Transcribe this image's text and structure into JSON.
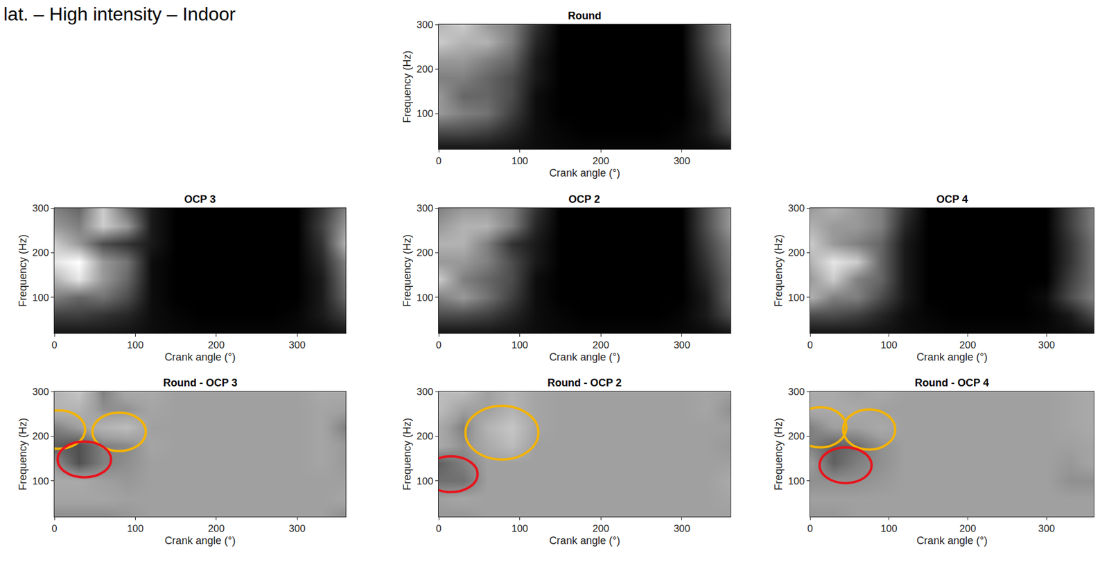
{
  "figure_title": "lat. – High intensity – Indoor",
  "chart_data": [
    {
      "type": "heatmap",
      "title": "Round",
      "x_label": "Crank angle (°)",
      "y_label": "Frequency (Hz)",
      "xlim": [
        0,
        360
      ],
      "ylim": [
        20,
        300
      ],
      "xticks": [
        0,
        100,
        200,
        300
      ],
      "yticks": [
        100,
        200,
        300
      ],
      "colors": [
        "#000000",
        "#ffffff"
      ],
      "zlim": [
        0,
        1
      ],
      "x": [
        0,
        30,
        60,
        90,
        120,
        150,
        180,
        210,
        240,
        270,
        300,
        330,
        360
      ],
      "y": [
        25,
        60,
        100,
        140,
        180,
        220,
        260,
        300
      ],
      "z": [
        [
          0.1,
          0.1,
          0.1,
          0.08,
          0.05,
          0.03,
          0.02,
          0.02,
          0.02,
          0.02,
          0.03,
          0.05,
          0.1
        ],
        [
          0.3,
          0.3,
          0.25,
          0.15,
          0.05,
          0.02,
          0,
          0,
          0,
          0,
          0.02,
          0.1,
          0.3
        ],
        [
          0.6,
          0.5,
          0.45,
          0.25,
          0.05,
          0,
          0,
          0,
          0,
          0,
          0,
          0.1,
          0.4
        ],
        [
          0.6,
          0.4,
          0.4,
          0.3,
          0.05,
          0,
          0,
          0,
          0,
          0,
          0,
          0.15,
          0.4
        ],
        [
          0.5,
          0.5,
          0.4,
          0.3,
          0.1,
          0,
          0,
          0,
          0,
          0,
          0,
          0.2,
          0.45
        ],
        [
          0.6,
          0.6,
          0.5,
          0.4,
          0.1,
          0,
          0,
          0,
          0,
          0,
          0,
          0.25,
          0.5
        ],
        [
          0.8,
          0.7,
          0.7,
          0.5,
          0.15,
          0,
          0,
          0,
          0,
          0,
          0,
          0.3,
          0.6
        ],
        [
          0.7,
          0.8,
          0.6,
          0.5,
          0.2,
          0,
          0,
          0,
          0,
          0,
          0,
          0.3,
          0.6
        ]
      ],
      "highlights": []
    },
    {
      "type": "heatmap",
      "title": "OCP 3",
      "x_label": "Crank angle (°)",
      "y_label": "Frequency (Hz)",
      "xlim": [
        0,
        360
      ],
      "ylim": [
        20,
        300
      ],
      "xticks": [
        0,
        100,
        200,
        300
      ],
      "yticks": [
        100,
        200,
        300
      ],
      "colors": [
        "#000000",
        "#ffffff"
      ],
      "zlim": [
        0,
        1
      ],
      "x": [
        0,
        30,
        60,
        90,
        120,
        150,
        180,
        210,
        240,
        270,
        300,
        330,
        360
      ],
      "y": [
        25,
        60,
        100,
        140,
        180,
        220,
        260,
        300
      ],
      "z": [
        [
          0.1,
          0.1,
          0.1,
          0.08,
          0.05,
          0.03,
          0.02,
          0.02,
          0.02,
          0.02,
          0.03,
          0.05,
          0.1
        ],
        [
          0.25,
          0.25,
          0.2,
          0.15,
          0.05,
          0.02,
          0,
          0,
          0,
          0,
          0.02,
          0.1,
          0.25
        ],
        [
          0.5,
          0.4,
          0.45,
          0.3,
          0.05,
          0,
          0,
          0,
          0,
          0,
          0,
          0.1,
          0.4
        ],
        [
          0.7,
          0.9,
          0.6,
          0.4,
          0.05,
          0,
          0,
          0,
          0,
          0,
          0,
          0.1,
          0.45
        ],
        [
          0.9,
          1,
          0.6,
          0.45,
          0.05,
          0,
          0,
          0,
          0,
          0,
          0,
          0.15,
          0.5
        ],
        [
          0.8,
          0.6,
          0.3,
          0.2,
          0.1,
          0,
          0,
          0,
          0,
          0,
          0,
          0.2,
          0.7
        ],
        [
          0.6,
          0.5,
          0.8,
          0.6,
          0.1,
          0,
          0,
          0,
          0,
          0,
          0,
          0.25,
          0.6
        ],
        [
          0.5,
          0.4,
          0.8,
          0.4,
          0.1,
          0,
          0,
          0,
          0,
          0,
          0,
          0.2,
          0.5
        ]
      ],
      "highlights": []
    },
    {
      "type": "heatmap",
      "title": "OCP 2",
      "x_label": "Crank angle (°)",
      "y_label": "Frequency (Hz)",
      "xlim": [
        0,
        360
      ],
      "ylim": [
        20,
        300
      ],
      "xticks": [
        0,
        100,
        200,
        300
      ],
      "yticks": [
        100,
        200,
        300
      ],
      "colors": [
        "#000000",
        "#ffffff"
      ],
      "zlim": [
        0,
        1
      ],
      "x": [
        0,
        30,
        60,
        90,
        120,
        150,
        180,
        210,
        240,
        270,
        300,
        330,
        360
      ],
      "y": [
        25,
        60,
        100,
        140,
        180,
        220,
        260,
        300
      ],
      "z": [
        [
          0.1,
          0.1,
          0.1,
          0.08,
          0.05,
          0.03,
          0.02,
          0.02,
          0.02,
          0.02,
          0.03,
          0.05,
          0.1
        ],
        [
          0.3,
          0.3,
          0.25,
          0.15,
          0.05,
          0.02,
          0,
          0,
          0,
          0,
          0.02,
          0.1,
          0.3
        ],
        [
          0.5,
          0.6,
          0.45,
          0.25,
          0.05,
          0,
          0,
          0,
          0,
          0,
          0,
          0.1,
          0.4
        ],
        [
          0.8,
          0.5,
          0.4,
          0.3,
          0.05,
          0,
          0,
          0,
          0,
          0,
          0,
          0.15,
          0.4
        ],
        [
          0.6,
          0.6,
          0.5,
          0.3,
          0.1,
          0,
          0,
          0,
          0,
          0,
          0,
          0.2,
          0.45
        ],
        [
          0.7,
          0.7,
          0.5,
          0.2,
          0.1,
          0,
          0,
          0,
          0,
          0,
          0,
          0.25,
          0.5
        ],
        [
          0.6,
          0.7,
          0.7,
          0.5,
          0.15,
          0,
          0,
          0,
          0,
          0,
          0,
          0.3,
          0.6
        ],
        [
          0.5,
          0.6,
          0.6,
          0.5,
          0.2,
          0,
          0,
          0,
          0,
          0,
          0,
          0.3,
          0.6
        ]
      ],
      "highlights": []
    },
    {
      "type": "heatmap",
      "title": "OCP 4",
      "x_label": "Crank angle (°)",
      "y_label": "Frequency (Hz)",
      "xlim": [
        0,
        360
      ],
      "ylim": [
        20,
        300
      ],
      "xticks": [
        0,
        100,
        200,
        300
      ],
      "yticks": [
        100,
        200,
        300
      ],
      "colors": [
        "#000000",
        "#ffffff"
      ],
      "zlim": [
        0,
        1
      ],
      "x": [
        0,
        30,
        60,
        90,
        120,
        150,
        180,
        210,
        240,
        270,
        300,
        330,
        360
      ],
      "y": [
        25,
        60,
        100,
        140,
        180,
        220,
        260,
        300
      ],
      "z": [
        [
          0.1,
          0.1,
          0.1,
          0.08,
          0.05,
          0.03,
          0.02,
          0.02,
          0.02,
          0.02,
          0.03,
          0.05,
          0.1
        ],
        [
          0.3,
          0.3,
          0.25,
          0.15,
          0.05,
          0.02,
          0,
          0,
          0,
          0,
          0.02,
          0.1,
          0.3
        ],
        [
          0.7,
          0.5,
          0.5,
          0.3,
          0.1,
          0,
          0,
          0,
          0,
          0,
          0.05,
          0.3,
          0.5
        ],
        [
          0.6,
          0.8,
          0.5,
          0.4,
          0.1,
          0,
          0,
          0,
          0,
          0,
          0,
          0.25,
          0.45
        ],
        [
          0.7,
          0.9,
          0.8,
          0.4,
          0.1,
          0,
          0,
          0,
          0,
          0,
          0,
          0.2,
          0.45
        ],
        [
          0.8,
          0.6,
          0.5,
          0.4,
          0.1,
          0,
          0,
          0,
          0,
          0,
          0,
          0.2,
          0.45
        ],
        [
          0.7,
          0.6,
          0.6,
          0.5,
          0.15,
          0,
          0,
          0,
          0,
          0,
          0,
          0.25,
          0.5
        ],
        [
          0.6,
          0.7,
          0.6,
          0.5,
          0.2,
          0,
          0,
          0,
          0,
          0,
          0,
          0.25,
          0.5
        ]
      ],
      "highlights": []
    },
    {
      "type": "heatmap",
      "title": "Round - OCP 3",
      "x_label": "Crank angle (°)",
      "y_label": "Frequency (Hz)",
      "xlim": [
        0,
        360
      ],
      "ylim": [
        20,
        300
      ],
      "xticks": [
        0,
        100,
        200,
        300
      ],
      "yticks": [
        100,
        200,
        300
      ],
      "colors": [
        "#000000",
        "#a0a0a0",
        "#ffffff"
      ],
      "zlim": [
        -1,
        1
      ],
      "x": [
        0,
        30,
        60,
        90,
        120,
        150,
        180,
        210,
        240,
        270,
        300,
        330,
        360
      ],
      "y": [
        25,
        60,
        100,
        140,
        180,
        220,
        260,
        300
      ],
      "z": [
        [
          -0.1,
          -0.1,
          -0.1,
          -0.05,
          0,
          0,
          0,
          0,
          0,
          0,
          0,
          0,
          -0.1
        ],
        [
          0.05,
          0.05,
          0.05,
          0,
          0,
          0,
          0,
          0,
          0,
          0,
          0,
          0,
          0.05
        ],
        [
          0.1,
          0.1,
          0,
          -0.05,
          0,
          0,
          0,
          0,
          0,
          0,
          0,
          0,
          0
        ],
        [
          -0.1,
          -0.5,
          -0.2,
          -0.1,
          0,
          0,
          0,
          0,
          0,
          0,
          0,
          0.05,
          -0.05
        ],
        [
          -0.4,
          -0.5,
          -0.2,
          -0.15,
          0.05,
          0,
          0,
          0,
          0,
          0,
          0,
          0.05,
          -0.05
        ],
        [
          -0.2,
          0,
          0.2,
          0.3,
          0,
          0,
          0,
          0,
          0,
          0,
          0,
          0.05,
          -0.2
        ],
        [
          0.2,
          0.2,
          -0.1,
          -0.1,
          0.05,
          0,
          0,
          0,
          0,
          0,
          0,
          0.05,
          0
        ],
        [
          0.2,
          0.4,
          -0.2,
          0.1,
          0.1,
          0,
          0,
          0,
          0,
          0,
          0,
          0.1,
          0.1
        ]
      ],
      "highlights": [
        {
          "x": 5,
          "y": 215,
          "rx": 33,
          "ry": 43,
          "color": "#f5b400"
        },
        {
          "x": 80,
          "y": 210,
          "rx": 33,
          "ry": 43,
          "color": "#f5b400"
        },
        {
          "x": 37,
          "y": 148,
          "rx": 33,
          "ry": 40,
          "color": "#e8141c"
        }
      ]
    },
    {
      "type": "heatmap",
      "title": "Round - OCP 2",
      "x_label": "Crank angle (°)",
      "y_label": "Frequency (Hz)",
      "xlim": [
        0,
        360
      ],
      "ylim": [
        20,
        300
      ],
      "xticks": [
        0,
        100,
        200,
        300
      ],
      "yticks": [
        100,
        200,
        300
      ],
      "colors": [
        "#000000",
        "#a0a0a0",
        "#ffffff"
      ],
      "zlim": [
        -1,
        1
      ],
      "x": [
        0,
        30,
        60,
        90,
        120,
        150,
        180,
        210,
        240,
        270,
        300,
        330,
        360
      ],
      "y": [
        25,
        60,
        100,
        140,
        180,
        220,
        260,
        300
      ],
      "z": [
        [
          -0.05,
          -0.05,
          0,
          0,
          0,
          0,
          0,
          0,
          0,
          0,
          0,
          0,
          0
        ],
        [
          0,
          0.05,
          0,
          0,
          0,
          0,
          0,
          0,
          0,
          0,
          0,
          0,
          0.05
        ],
        [
          -0.3,
          -0.3,
          0,
          0,
          0,
          0,
          0,
          0,
          0,
          0,
          0,
          0,
          0.1
        ],
        [
          -0.4,
          -0.2,
          0,
          0,
          0,
          0,
          0,
          0,
          0,
          0,
          0,
          0,
          0
        ],
        [
          0.1,
          -0.1,
          0.1,
          0.3,
          0,
          0,
          0,
          0,
          0,
          0,
          0,
          0,
          -0.05
        ],
        [
          0.1,
          -0.2,
          0.2,
          0.4,
          0.05,
          0,
          0,
          0,
          0,
          0,
          0,
          0,
          0
        ],
        [
          0.3,
          0,
          0,
          0.2,
          0.05,
          0,
          0,
          0,
          0,
          0,
          0,
          0.05,
          -0.1
        ],
        [
          0.3,
          0.3,
          0,
          0.2,
          0.05,
          0,
          0,
          0,
          0,
          0,
          0,
          0.05,
          0
        ]
      ],
      "highlights": [
        {
          "x": 15,
          "y": 115,
          "rx": 33,
          "ry": 40,
          "color": "#e8141c"
        },
        {
          "x": 78,
          "y": 208,
          "rx": 45,
          "ry": 60,
          "color": "#f5b400"
        }
      ]
    },
    {
      "type": "heatmap",
      "title": "Round - OCP 4",
      "x_label": "Crank angle (°)",
      "y_label": "Frequency (Hz)",
      "xlim": [
        0,
        360
      ],
      "ylim": [
        20,
        300
      ],
      "xticks": [
        0,
        100,
        200,
        300
      ],
      "yticks": [
        100,
        200,
        300
      ],
      "colors": [
        "#000000",
        "#a0a0a0",
        "#ffffff"
      ],
      "zlim": [
        -1,
        1
      ],
      "x": [
        0,
        30,
        60,
        90,
        120,
        150,
        180,
        210,
        240,
        270,
        300,
        330,
        360
      ],
      "y": [
        25,
        60,
        100,
        140,
        180,
        220,
        260,
        300
      ],
      "z": [
        [
          -0.05,
          -0.05,
          0,
          0,
          0,
          0,
          0,
          0,
          0,
          0,
          0,
          0,
          0
        ],
        [
          0,
          0,
          0,
          0,
          0,
          0,
          0,
          0,
          0,
          0,
          0,
          0,
          0
        ],
        [
          -0.1,
          -0.1,
          -0.1,
          -0.05,
          0,
          0,
          0,
          0,
          0,
          0,
          0,
          -0.1,
          -0.1
        ],
        [
          0,
          -0.4,
          -0.2,
          -0.1,
          0,
          0,
          0,
          0,
          0,
          0,
          0,
          -0.05,
          0.05
        ],
        [
          -0.2,
          -0.4,
          -0.3,
          -0.1,
          0,
          0,
          0,
          0,
          0,
          0,
          0,
          0,
          0.05
        ],
        [
          -0.2,
          0,
          0,
          0.1,
          0,
          0,
          0,
          0,
          0,
          0,
          0,
          0.05,
          0.1
        ],
        [
          0.1,
          0.1,
          0.1,
          0,
          0,
          0,
          0,
          0,
          0,
          0,
          0,
          0.05,
          0.1
        ],
        [
          0.1,
          0.1,
          0,
          0.1,
          0,
          0,
          0,
          0,
          0,
          0,
          0,
          0.05,
          0.1
        ]
      ],
      "highlights": [
        {
          "x": 13,
          "y": 220,
          "rx": 33,
          "ry": 45,
          "color": "#f5b400"
        },
        {
          "x": 75,
          "y": 215,
          "rx": 33,
          "ry": 45,
          "color": "#f5b400"
        },
        {
          "x": 45,
          "y": 135,
          "rx": 33,
          "ry": 40,
          "color": "#e8141c"
        }
      ]
    }
  ]
}
